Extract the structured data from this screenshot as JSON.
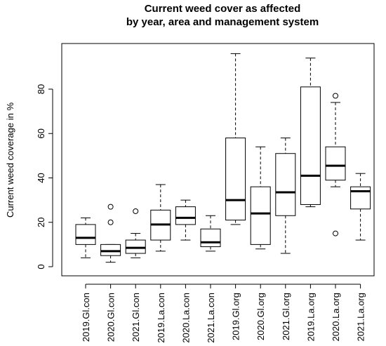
{
  "chart_data": {
    "type": "boxplot",
    "title_lines": [
      "Current weed cover as affected",
      "by year, area and management system"
    ],
    "xlabel": "",
    "ylabel": "Current weed coverage in %",
    "ylim": [
      -1,
      100
    ],
    "yticks": [
      0,
      20,
      40,
      60,
      80
    ],
    "grid": false,
    "categories": [
      "2019.Gl.con",
      "2020.Gl.con",
      "2021.Gl.con",
      "2019.La.con",
      "2020.La.con",
      "2021.La.con",
      "2019.Gl.org",
      "2020.Gl.org",
      "2021.Gl.org",
      "2019.La.org",
      "2020.La.org",
      "2021.La.org"
    ],
    "boxes": [
      {
        "whisker_low": 4,
        "q1": 10,
        "median": 13,
        "q3": 19,
        "whisker_high": 22,
        "outliers": []
      },
      {
        "whisker_low": 2,
        "q1": 5,
        "median": 7,
        "q3": 10,
        "whisker_high": 10,
        "outliers": [
          20,
          27
        ]
      },
      {
        "whisker_low": 4,
        "q1": 6,
        "median": 8.5,
        "q3": 12,
        "whisker_high": 15,
        "outliers": [
          25
        ]
      },
      {
        "whisker_low": 7,
        "q1": 12,
        "median": 19,
        "q3": 25.5,
        "whisker_high": 37,
        "outliers": []
      },
      {
        "whisker_low": 12,
        "q1": 19,
        "median": 22,
        "q3": 27,
        "whisker_high": 30,
        "outliers": []
      },
      {
        "whisker_low": 7,
        "q1": 9,
        "median": 11,
        "q3": 17,
        "whisker_high": 23,
        "outliers": []
      },
      {
        "whisker_low": 19,
        "q1": 21,
        "median": 30,
        "q3": 58,
        "whisker_high": 96,
        "outliers": []
      },
      {
        "whisker_low": 8,
        "q1": 10,
        "median": 24,
        "q3": 36,
        "whisker_high": 54,
        "outliers": []
      },
      {
        "whisker_low": 6,
        "q1": 23,
        "median": 33.5,
        "q3": 51,
        "whisker_high": 58,
        "outliers": []
      },
      {
        "whisker_low": 27,
        "q1": 28,
        "median": 41,
        "q3": 81,
        "whisker_high": 94,
        "outliers": []
      },
      {
        "whisker_low": 36,
        "q1": 39,
        "median": 45.5,
        "q3": 54,
        "whisker_high": 74,
        "outliers": [
          15,
          77
        ]
      },
      {
        "whisker_low": 12,
        "q1": 26,
        "median": 34,
        "q3": 36,
        "whisker_high": 42,
        "outliers": []
      }
    ]
  }
}
